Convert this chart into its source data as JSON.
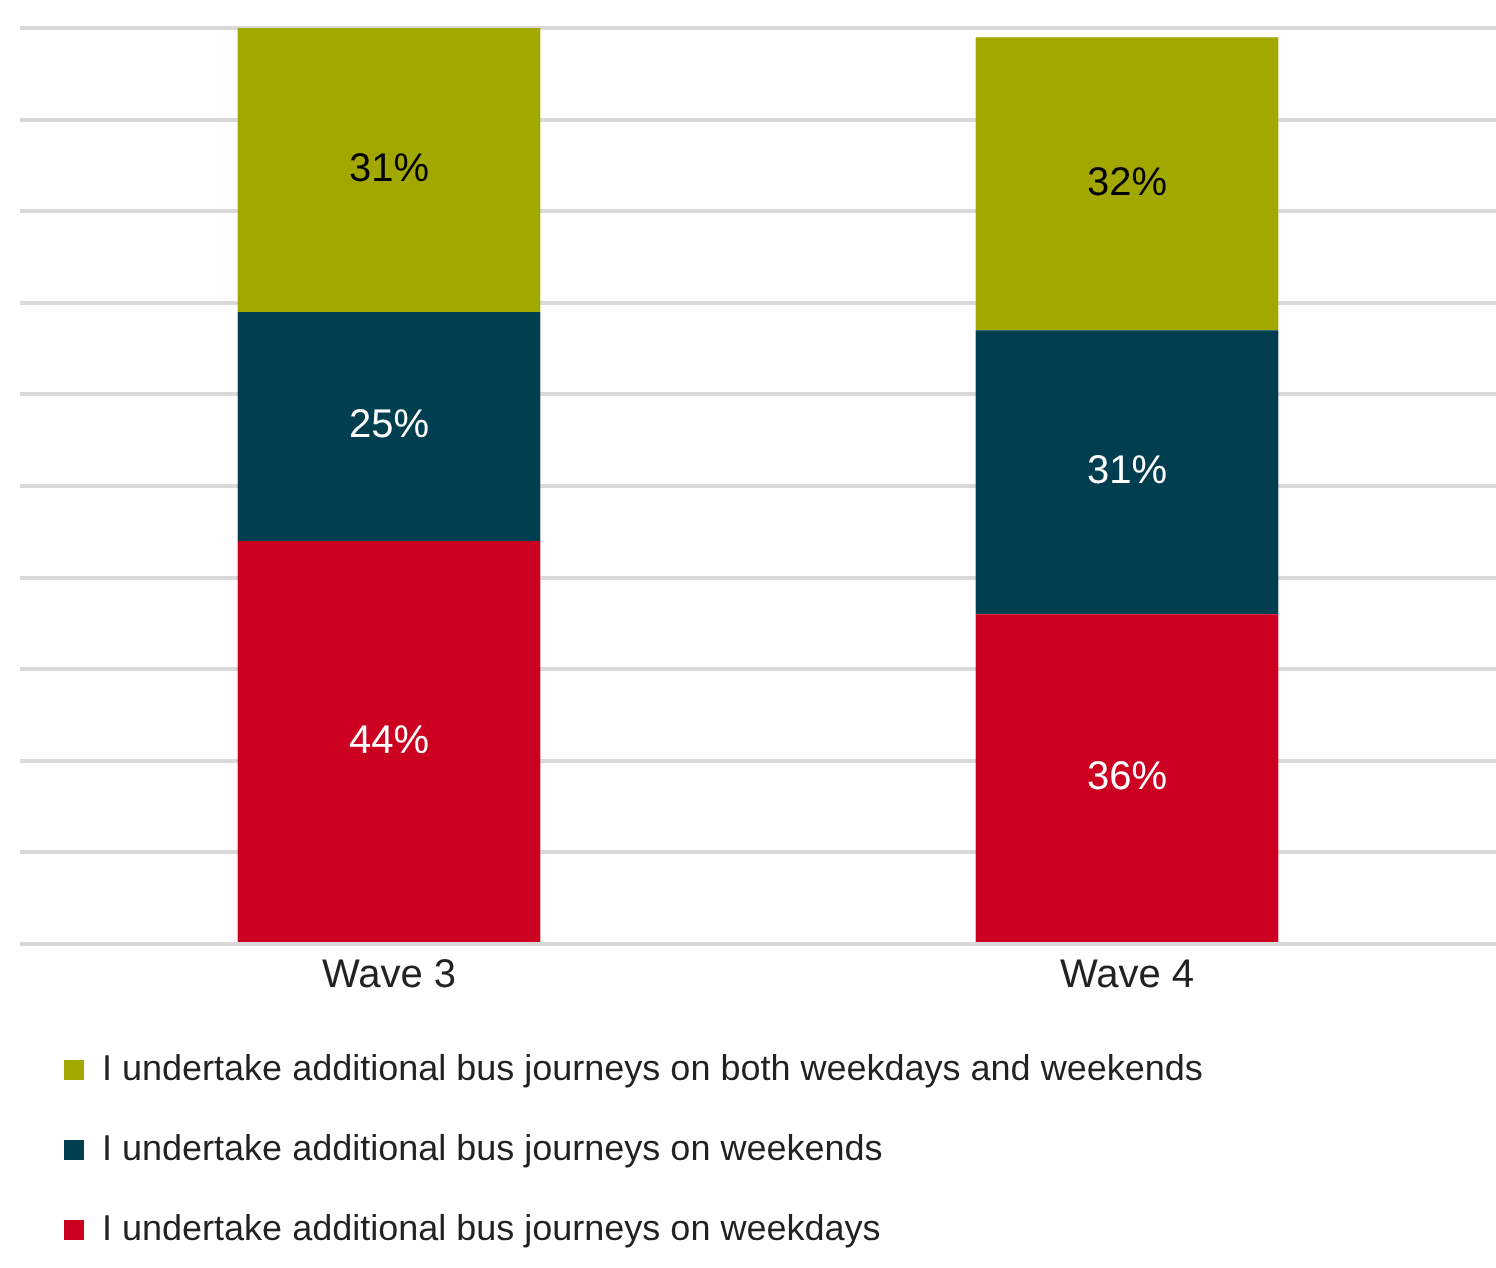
{
  "chart_data": {
    "type": "bar",
    "stacked": true,
    "categories": [
      "Wave 3",
      "Wave 4"
    ],
    "series": [
      {
        "name": "I undertake additional bus journeys on weekdays",
        "color": "#cc0020",
        "values": [
          44,
          36
        ],
        "value_labels": [
          "44%",
          "36%"
        ]
      },
      {
        "name": "I undertake additional bus journeys on weekends",
        "color": "#003e50",
        "values": [
          25,
          31
        ],
        "value_labels": [
          "25%",
          "31%"
        ]
      },
      {
        "name": "I undertake additional bus journeys on both weekdays and weekends",
        "color": "#a2a800",
        "values": [
          31,
          32
        ],
        "value_labels": [
          "31%",
          "32%"
        ]
      }
    ],
    "ylim": [
      0,
      100
    ],
    "yticks": [
      0,
      10,
      20,
      30,
      40,
      50,
      60,
      70,
      80,
      90,
      100
    ],
    "grid": "y",
    "tick_labels": "x",
    "legend": "bottom left"
  }
}
